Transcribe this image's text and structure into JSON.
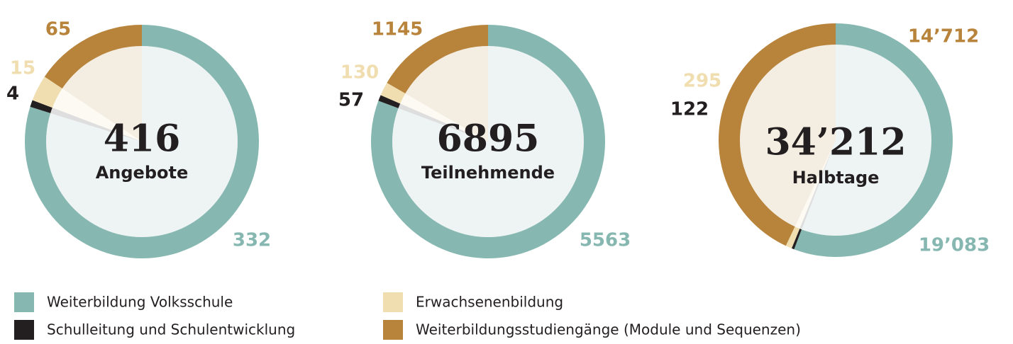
{
  "legend": {
    "names": [
      "Weiterbildung Volksschule",
      "Schulleitung und Schulentwicklung",
      "Erwachsenenbildung",
      "Weiterbildungsstudiengänge (Module und Sequenzen)"
    ],
    "colors": [
      "#86b8b1",
      "#231f20",
      "#f0deb0",
      "#b8843c"
    ]
  },
  "chart_data": [
    {
      "type": "pie",
      "values": [
        332,
        4,
        15,
        65
      ],
      "total": 416,
      "subtitle": "Angebote"
    },
    {
      "type": "pie",
      "values": [
        5563,
        57,
        130,
        1145
      ],
      "total": 6895,
      "subtitle": "Teilnehmende"
    },
    {
      "type": "pie",
      "values": [
        19083,
        122,
        295,
        14712
      ],
      "value_labels": [
        "19’083",
        "122",
        "295",
        "14’712"
      ],
      "total": {
        "value": 34212,
        "label": "34’212"
      },
      "subtitle": "Halbtage"
    }
  ]
}
